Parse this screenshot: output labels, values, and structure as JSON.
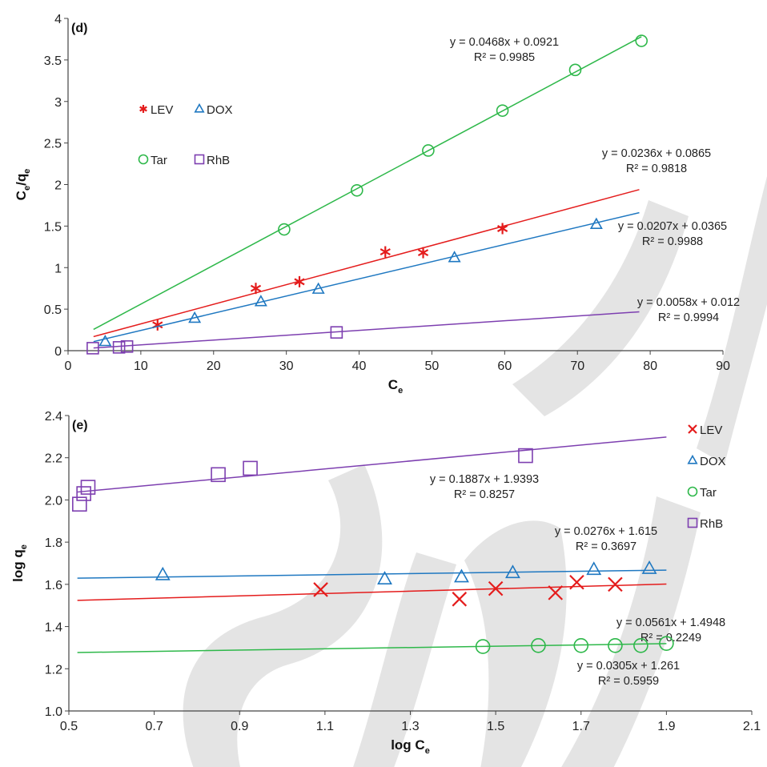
{
  "colors": {
    "LEV": "#e41c1c",
    "DOX": "#1f78c1",
    "Tar": "#2eb84a",
    "RhB": "#7d3fb0",
    "watermark": "#d9d9d9"
  },
  "chart_data": [
    {
      "panel": "(d)",
      "type": "scatter",
      "xlabel": "C",
      "xlabel_sub": "e",
      "ylabel": "C",
      "ylabel_sub1": "e",
      "ylabel_slash": "/q",
      "ylabel_sub2": "e",
      "xlim": [
        0,
        90
      ],
      "ylim": [
        0,
        4
      ],
      "xticks": [
        "0",
        "10",
        "20",
        "30",
        "40",
        "50",
        "60",
        "70",
        "80",
        "90"
      ],
      "yticks": [
        "0",
        "0.5",
        "1",
        "1.5",
        "2",
        "2.5",
        "3",
        "3.5",
        "4"
      ],
      "grid": false,
      "legend_placement": "upper-left",
      "series": [
        {
          "name": "LEV",
          "marker": "asterisk",
          "points": [
            [
              12.3,
              0.31
            ],
            [
              25.8,
              0.75
            ],
            [
              31.8,
              0.83
            ],
            [
              43.6,
              1.19
            ],
            [
              48.8,
              1.18
            ],
            [
              59.7,
              1.47
            ]
          ],
          "fit": {
            "slope": 0.0236,
            "intercept": 0.0865,
            "x_range": [
              3.5,
              78.5
            ]
          },
          "eq_line1": "y = 0.0236x + 0.0865",
          "eq_line2": "R² = 0.9818"
        },
        {
          "name": "DOX",
          "marker": "triangle",
          "points": [
            [
              5.1,
              0.11
            ],
            [
              17.4,
              0.39
            ],
            [
              26.5,
              0.59
            ],
            [
              34.4,
              0.74
            ],
            [
              53.1,
              1.12
            ],
            [
              72.6,
              1.52
            ]
          ],
          "fit": {
            "slope": 0.0207,
            "intercept": 0.0365,
            "x_range": [
              3.5,
              78.5
            ]
          },
          "eq_line1": "y = 0.0207x + 0.0365",
          "eq_line2": "R² = 0.9988"
        },
        {
          "name": "Tar",
          "marker": "circle",
          "points": [
            [
              29.7,
              1.46
            ],
            [
              39.7,
              1.93
            ],
            [
              49.5,
              2.41
            ],
            [
              59.7,
              2.89
            ],
            [
              69.7,
              3.38
            ],
            [
              78.8,
              3.73
            ]
          ],
          "fit": {
            "slope": 0.0468,
            "intercept": 0.0921,
            "x_range": [
              3.5,
              78.8
            ]
          },
          "eq_line1": "y = 0.0468x + 0.0921",
          "eq_line2": "R² = 0.9985"
        },
        {
          "name": "RhB",
          "marker": "square",
          "points": [
            [
              3.4,
              0.03
            ],
            [
              7.0,
              0.04
            ],
            [
              8.1,
              0.05
            ],
            [
              36.9,
              0.22
            ]
          ],
          "fit": {
            "slope": 0.0058,
            "intercept": 0.012,
            "x_range": [
              3.5,
              78.5
            ]
          },
          "eq_line1": "y = 0.0058x + 0.012",
          "eq_line2": "R² = 0.9994"
        }
      ]
    },
    {
      "panel": "(e)",
      "type": "scatter",
      "xlabel": "log C",
      "xlabel_sub": "e",
      "ylabel": "log q",
      "ylabel_sub": "e",
      "xlim": [
        0.5,
        2.1
      ],
      "ylim": [
        1.0,
        2.4
      ],
      "xticks": [
        "0.5",
        "0.7",
        "0.9",
        "1.1",
        "1.3",
        "1.5",
        "1.7",
        "1.9",
        "2.1"
      ],
      "yticks": [
        "1.0",
        "1.2",
        "1.4",
        "1.6",
        "1.8",
        "2.0",
        "2.2",
        "2.4"
      ],
      "grid": false,
      "legend_placement": "right",
      "series": [
        {
          "name": "LEV",
          "marker": "cross",
          "points": [
            [
              1.09,
              1.575
            ],
            [
              1.415,
              1.53
            ],
            [
              1.5,
              1.58
            ],
            [
              1.64,
              1.56
            ],
            [
              1.69,
              1.61
            ],
            [
              1.78,
              1.6
            ]
          ],
          "fit": {
            "slope": 0.0561,
            "intercept": 1.4948,
            "x_range": [
              0.52,
              1.9
            ]
          },
          "eq_line1": "y = 0.0561x + 1.4948",
          "eq_line2": "R² = 0.2249"
        },
        {
          "name": "DOX",
          "marker": "triangle",
          "points": [
            [
              0.72,
              1.645
            ],
            [
              1.24,
              1.625
            ],
            [
              1.42,
              1.635
            ],
            [
              1.54,
              1.655
            ],
            [
              1.73,
              1.67
            ],
            [
              1.86,
              1.675
            ]
          ],
          "fit": {
            "slope": 0.0276,
            "intercept": 1.615,
            "x_range": [
              0.52,
              1.9
            ]
          },
          "eq_line1": "y = 0.0276x + 1.615",
          "eq_line2": "R² = 0.3697"
        },
        {
          "name": "Tar",
          "marker": "circle",
          "points": [
            [
              1.47,
              1.305
            ],
            [
              1.6,
              1.31
            ],
            [
              1.7,
              1.31
            ],
            [
              1.78,
              1.31
            ],
            [
              1.84,
              1.31
            ],
            [
              1.9,
              1.32
            ]
          ],
          "fit": {
            "slope": 0.0305,
            "intercept": 1.261,
            "x_range": [
              0.52,
              1.9
            ]
          },
          "eq_line1": "y = 0.0305x + 1.261",
          "eq_line2": "R² = 0.5959"
        },
        {
          "name": "RhB",
          "marker": "square",
          "points": [
            [
              0.525,
              1.98
            ],
            [
              0.535,
              2.03
            ],
            [
              0.545,
              2.06
            ],
            [
              0.85,
              2.12
            ],
            [
              0.925,
              2.15
            ],
            [
              1.57,
              2.21
            ]
          ],
          "fit": {
            "slope": 0.1887,
            "intercept": 1.9393,
            "x_range": [
              0.52,
              1.9
            ]
          },
          "eq_line1": "y = 0.1887x + 1.9393",
          "eq_line2": "R² = 0.8257"
        }
      ]
    }
  ]
}
